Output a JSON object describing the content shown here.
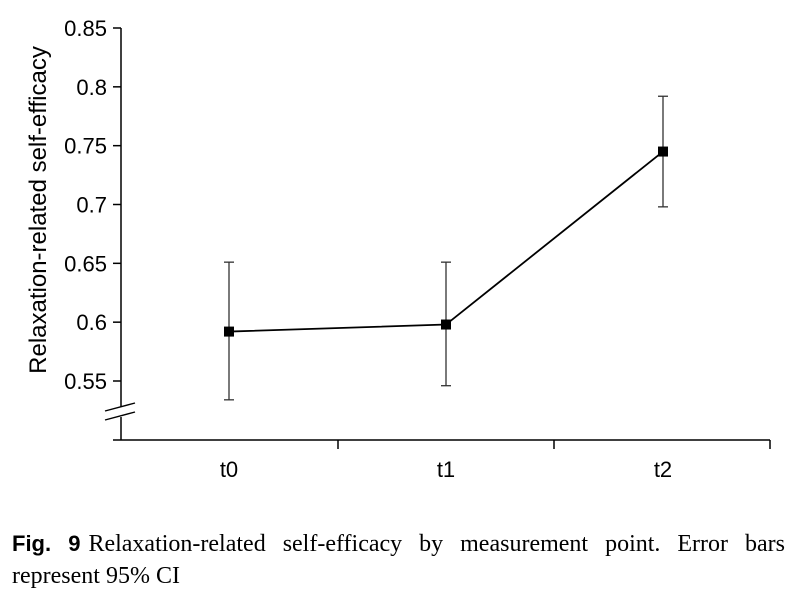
{
  "chart_data": {
    "type": "line",
    "title": "",
    "xlabel": "",
    "ylabel": "Relaxation-related self-efficacy",
    "categories": [
      "t0",
      "t1",
      "t2"
    ],
    "series": [
      {
        "values": [
          0.592,
          0.598,
          0.745
        ],
        "error_lower": [
          0.534,
          0.546,
          0.698
        ],
        "error_upper": [
          0.651,
          0.651,
          0.792
        ]
      }
    ],
    "ylim": [
      0.5,
      0.85
    ],
    "yticks": [
      0.55,
      0.6,
      0.65,
      0.7,
      0.75,
      0.8,
      0.85
    ],
    "ytick_labels": [
      "0.55",
      "0.6",
      "0.65",
      "0.7",
      "0.75",
      "0.8",
      "0.85"
    ],
    "y_axis_break": true,
    "marker": "square",
    "line_color": "#000000",
    "grid": false,
    "legend": "none"
  },
  "caption": {
    "label": "Fig. 9",
    "text": "Relaxation-related self-efficacy by measurement point. Error bars represent 95% CI"
  }
}
